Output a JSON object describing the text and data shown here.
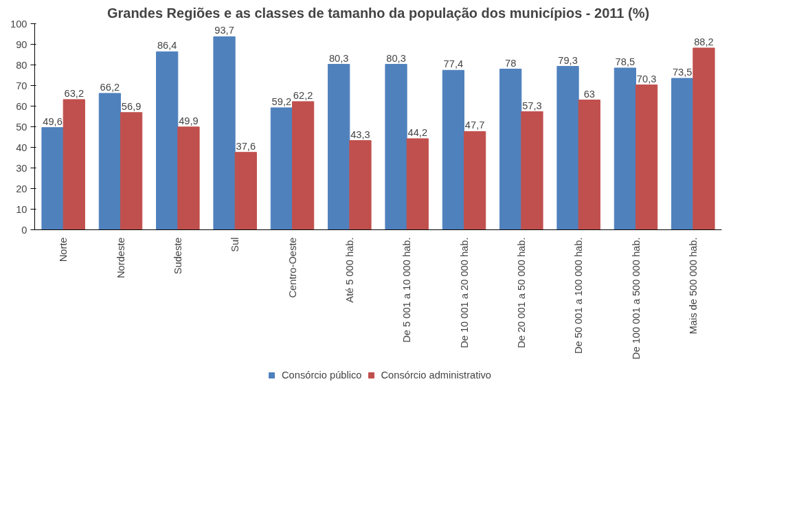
{
  "chart_data": {
    "type": "bar",
    "title": "Grandes Regiões e as classes de tamanho da população dos municípios - 2011 (%)",
    "categories": [
      "Norte",
      "Nordeste",
      "Sudeste",
      "Sul",
      "Centro-Oeste",
      "Até 5 000 hab.",
      "De 5 001 a 10 000 hab.",
      "De 10 001 a 20 000 hab.",
      "De 20 001 a 50 000 hab.",
      "De 50 001 a 100 000 hab.",
      "De 100 001 a 500 000 hab.",
      "Mais de 500 000 hab."
    ],
    "series": [
      {
        "name": "Consórcio público",
        "color": "#4f81bd",
        "values": [
          49.6,
          66.2,
          86.4,
          93.7,
          59.2,
          80.3,
          80.3,
          77.4,
          78,
          79.3,
          78.5,
          73.5
        ],
        "value_labels": [
          "49,6",
          "66,2",
          "86,4",
          "93,7",
          "59,2",
          "80,3",
          "80,3",
          "77,4",
          "78",
          "79,3",
          "78,5",
          "73,5"
        ]
      },
      {
        "name": "Consórcio administrativo",
        "color": "#c0504d",
        "values": [
          63.2,
          56.9,
          49.9,
          37.6,
          62.2,
          43.3,
          44.2,
          47.7,
          57.3,
          63,
          70.3,
          88.2
        ],
        "value_labels": [
          "63,2",
          "56,9",
          "49,9",
          "37,6",
          "62,2",
          "43,3",
          "44,2",
          "47,7",
          "57,3",
          "63",
          "70,3",
          "88,2"
        ]
      }
    ],
    "ylim": [
      0,
      100
    ],
    "yticks": [
      0,
      10,
      20,
      30,
      40,
      50,
      60,
      70,
      80,
      90,
      100
    ],
    "data_labels": true,
    "legend": "bottom",
    "grid": false
  }
}
